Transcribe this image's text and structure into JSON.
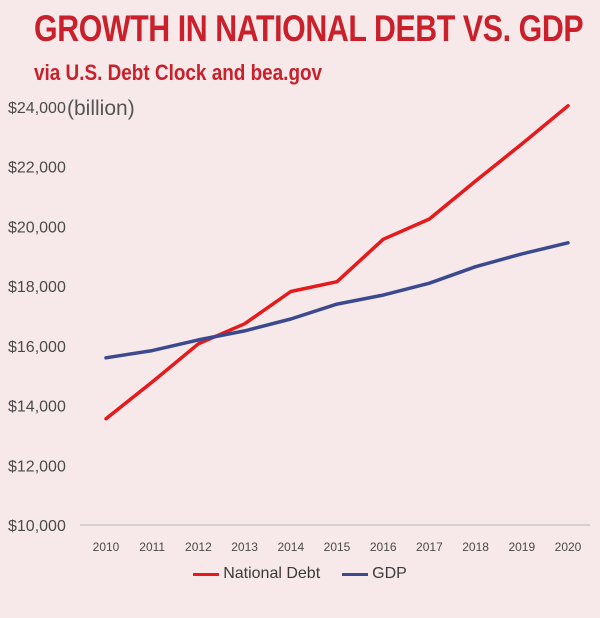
{
  "title": "GROWTH IN NATIONAL DEBT VS. GDP",
  "subtitle": "via U.S. Debt Clock and bea.gov",
  "chart_data": {
    "type": "line",
    "title": "GROWTH IN NATIONAL DEBT VS. GDP",
    "subtitle": "via U.S. Debt Clock and bea.gov",
    "xlabel": "",
    "ylabel": "",
    "y_unit_label": "(billion)",
    "categories": [
      "2010",
      "2011",
      "2012",
      "2013",
      "2014",
      "2015",
      "2016",
      "2017",
      "2018",
      "2019",
      "2020"
    ],
    "ylim": [
      10000,
      24000
    ],
    "yticks": [
      10000,
      12000,
      14000,
      16000,
      18000,
      20000,
      22000,
      24000
    ],
    "ytick_labels": [
      "$10,000",
      "$12,000",
      "$14,000",
      "$16,000",
      "$18,000",
      "$20,000",
      "$22,000",
      "$24,000"
    ],
    "grid": false,
    "legend_position": "bottom",
    "series": [
      {
        "name": "National Debt",
        "color": "#e41a1c",
        "values": [
          13560,
          14790,
          16070,
          16740,
          17820,
          18150,
          19570,
          20250,
          21520,
          22760,
          24040
        ]
      },
      {
        "name": "GDP",
        "color": "#3b4a8f",
        "values": [
          15600,
          15840,
          16200,
          16500,
          16900,
          17400,
          17700,
          18100,
          18650,
          19080,
          19450
        ]
      }
    ]
  },
  "colors": {
    "background": "#f7e9e9",
    "title": "#c9202b",
    "axis": "#b8b8b8"
  }
}
